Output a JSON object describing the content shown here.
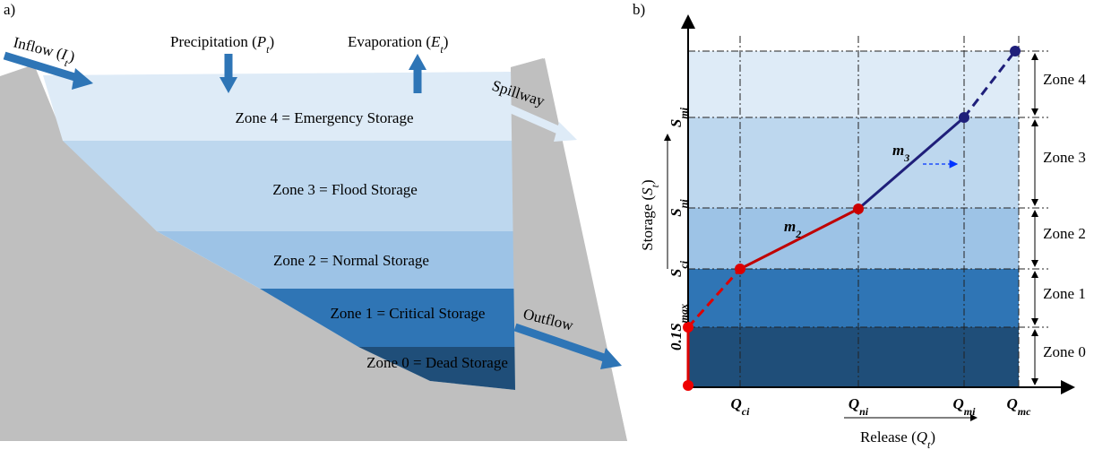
{
  "panel_a": {
    "label": "a)",
    "inflow": {
      "pre": "Inflow (",
      "var": "I",
      "sub": "t",
      "end": ")"
    },
    "precipitation": {
      "pre": "Precipitation (",
      "var": "P",
      "sub": "t",
      "end": ")"
    },
    "evaporation": {
      "pre": "Evaporation (",
      "var": "E",
      "sub": "t",
      "end": ")"
    },
    "spillway": "Spillway",
    "outflow": "Outflow",
    "zones": [
      "Zone 0 = Dead Storage",
      "Zone 1 = Critical Storage",
      "Zone 2 = Normal Storage",
      "Zone 3 = Flood Storage",
      "Zone 4 = Emergency Storage"
    ]
  },
  "panel_b": {
    "label": "b)",
    "y_axis": {
      "pre": "Storage (",
      "var": "S",
      "sub": "t",
      "end": ")"
    },
    "x_axis": {
      "pre": "Release (",
      "var": "Q",
      "sub": "t",
      "end": ")"
    },
    "y_ticks": [
      {
        "var": "0.1S",
        "sub": "max"
      },
      {
        "var": "S",
        "sub": "ci"
      },
      {
        "var": "S",
        "sub": "ni"
      },
      {
        "var": "S",
        "sub": "mi"
      }
    ],
    "x_ticks": [
      {
        "var": "Q",
        "sub": "ci"
      },
      {
        "var": "Q",
        "sub": "ni"
      },
      {
        "var": "Q",
        "sub": "mi"
      },
      {
        "var": "Q",
        "sub": "mc"
      }
    ],
    "zones": [
      "Zone 0",
      "Zone 1",
      "Zone 2",
      "Zone 3",
      "Zone 4"
    ],
    "slopes": [
      {
        "var": "m",
        "sub": "2"
      },
      {
        "var": "m",
        "sub": "3"
      }
    ]
  }
}
